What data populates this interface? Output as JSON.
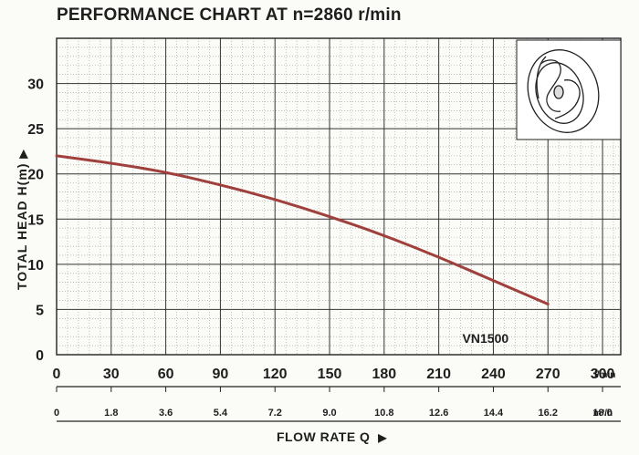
{
  "chart_data": {
    "type": "line",
    "title": "PERFORMANCE CHART AT n=2860 r/min",
    "ylabel": "TOTAL HEAD H(m)",
    "xlabel": "FLOW RATE Q",
    "x_unit": "l/min",
    "x2_unit": "m³/h",
    "xlim": [
      0,
      310
    ],
    "ylim": [
      0,
      35
    ],
    "x_ticks": [
      0,
      30,
      60,
      90,
      120,
      150,
      180,
      210,
      240,
      270,
      300
    ],
    "x2_ticks": [
      "0",
      "1.8",
      "3.6",
      "5.4",
      "7.2",
      "9.0",
      "10.8",
      "12.6",
      "14.4",
      "16.2",
      "18.0"
    ],
    "y_ticks": [
      0,
      5,
      10,
      15,
      20,
      25,
      30
    ],
    "grid": true,
    "series": [
      {
        "name": "VN1500",
        "color": "#a0403d",
        "x": [
          0,
          30,
          60,
          90,
          120,
          150,
          180,
          210,
          240,
          270
        ],
        "y": [
          22.0,
          21.2,
          20.2,
          18.8,
          17.2,
          15.3,
          13.2,
          10.8,
          8.2,
          5.6
        ]
      }
    ],
    "annotations": [
      "VN1500"
    ]
  },
  "icons": [
    "impeller-icon"
  ]
}
